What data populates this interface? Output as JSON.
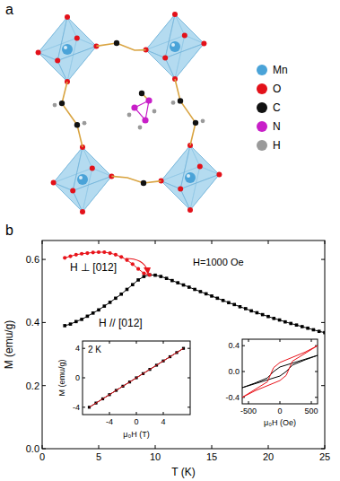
{
  "panel_a": {
    "label": "a",
    "legend": [
      {
        "label": "Mn",
        "color": "#4aa3d8"
      },
      {
        "label": "O",
        "color": "#e3111a"
      },
      {
        "label": "C",
        "color": "#111111"
      },
      {
        "label": "N",
        "color": "#c81fc8"
      },
      {
        "label": "H",
        "color": "#9a9a9a"
      }
    ]
  },
  "panel_b": {
    "label": "b"
  },
  "chart_data": [
    {
      "type": "line",
      "xlabel": "T (K)",
      "ylabel": "M (emu/g)",
      "annotations": [
        "H=1000 Oe"
      ],
      "x": [
        2,
        2.5,
        3,
        3.5,
        4,
        4.5,
        5,
        5.5,
        6,
        6.5,
        7,
        7.5,
        8,
        8.5,
        9,
        9.5,
        10,
        10.5,
        11,
        11.5,
        12,
        12.5,
        13,
        13.5,
        14,
        14.5,
        15,
        15.5,
        16,
        16.5,
        17,
        17.5,
        18,
        18.5,
        19,
        19.5,
        20,
        20.5,
        21,
        21.5,
        22,
        22.5,
        23,
        23.5,
        24,
        24.5,
        25
      ],
      "series": [
        {
          "name": "H // [012]",
          "color": "#000000",
          "marker": "square",
          "line_style": "solid",
          "values": [
            0.39,
            0.395,
            0.403,
            0.41,
            0.42,
            0.43,
            0.44,
            0.452,
            0.464,
            0.477,
            0.49,
            0.505,
            0.52,
            0.535,
            0.546,
            0.551,
            0.55,
            0.546,
            0.54,
            0.533,
            0.526,
            0.519,
            0.512,
            0.505,
            0.498,
            0.491,
            0.484,
            0.477,
            0.47,
            0.463,
            0.457,
            0.45,
            0.444,
            0.437,
            0.431,
            0.425,
            0.419,
            0.413,
            0.408,
            0.402,
            0.397,
            0.392,
            0.387,
            0.382,
            0.377,
            0.372,
            0.368
          ]
        },
        {
          "name": "H ⊥ [012]",
          "color": "#e8141b",
          "marker": "circle",
          "line_style": "solid",
          "values": [
            0.605,
            0.61,
            0.615,
            0.618,
            0.62,
            0.622,
            0.623,
            0.623,
            0.62,
            0.615,
            0.608,
            0.598,
            0.585,
            0.57,
            0.556,
            0.551,
            null,
            null,
            null,
            null,
            null,
            null,
            null,
            null,
            null,
            null,
            null,
            null,
            null,
            null,
            null,
            null,
            null,
            null,
            null,
            null,
            null,
            null,
            null,
            null,
            null,
            null,
            null,
            null,
            null,
            null,
            null
          ]
        }
      ],
      "xlim": [
        0,
        25
      ],
      "xticks": [
        0,
        5,
        10,
        15,
        20,
        25
      ],
      "ylim": [
        0,
        0.66
      ],
      "yticks": [
        {
          "value": 0,
          "label": "0.0"
        },
        {
          "value": 0.2,
          "label": "0.2"
        },
        {
          "value": 0.4,
          "label": "0.4"
        },
        {
          "value": 0.6,
          "label": "0.6"
        }
      ]
    },
    {
      "type": "line",
      "xlabel": "μ₀H (T)",
      "ylabel": "M (emu/g)",
      "annotations": [
        "2 K"
      ],
      "x": [
        -7,
        -6,
        -5,
        -4,
        -3,
        -2,
        -1,
        0,
        1,
        2,
        3,
        4,
        5,
        6,
        7
      ],
      "series": [
        {
          "color": "#000000",
          "marker": "square",
          "line_style": "solid",
          "values": [
            -4.0,
            -3.43,
            -2.86,
            -2.29,
            -1.71,
            -1.14,
            -0.57,
            0,
            0.57,
            1.14,
            1.71,
            2.29,
            2.86,
            3.43,
            4.0
          ]
        },
        {
          "color": "#e8141b",
          "marker": "none",
          "line_style": "solid",
          "values": [
            -4.0,
            -3.43,
            -2.86,
            -2.29,
            -1.71,
            -1.14,
            -0.57,
            0,
            0.57,
            1.14,
            1.71,
            2.29,
            2.86,
            3.43,
            4.0
          ]
        }
      ],
      "xlim": [
        -8,
        8
      ],
      "xticks": [
        -4,
        0,
        4
      ],
      "ylim": [
        -5,
        5
      ],
      "yticks": [
        -4,
        0,
        4
      ]
    },
    {
      "type": "line",
      "xlabel": "μ₀H (Oe)",
      "series": [
        {
          "color": "#000000",
          "marker": "none",
          "line_style": "solid",
          "x": [
            600,
            400,
            200,
            100,
            0,
            -100,
            -200,
            -400,
            -600,
            -400,
            -200,
            -100,
            0,
            100,
            200,
            400,
            600
          ],
          "values": [
            0.25,
            0.19,
            0.13,
            0.1,
            0.07,
            0.0,
            -0.1,
            -0.18,
            -0.25,
            -0.19,
            -0.13,
            -0.1,
            -0.07,
            0.0,
            0.1,
            0.18,
            0.25
          ]
        },
        {
          "color": "#e8141b",
          "marker": "none",
          "line_style": "solid",
          "x": [
            600,
            400,
            200,
            100,
            0,
            -100,
            -200,
            -400,
            -600,
            -400,
            -200,
            -100,
            0,
            100,
            200,
            400,
            600
          ],
          "values": [
            0.4,
            0.3,
            0.22,
            0.18,
            0.14,
            0.06,
            -0.16,
            -0.28,
            -0.4,
            -0.3,
            -0.22,
            -0.18,
            -0.14,
            -0.06,
            0.16,
            0.28,
            0.4
          ]
        }
      ],
      "xlim": [
        -600,
        600
      ],
      "xticks": [
        -500,
        0,
        500
      ],
      "ylim": [
        -0.5,
        0.5
      ],
      "yticks": [
        {
          "value": -0.4,
          "label": "-0.4"
        },
        {
          "value": 0,
          "label": "0.0"
        },
        {
          "value": 0.4,
          "label": "0.4"
        }
      ]
    }
  ]
}
